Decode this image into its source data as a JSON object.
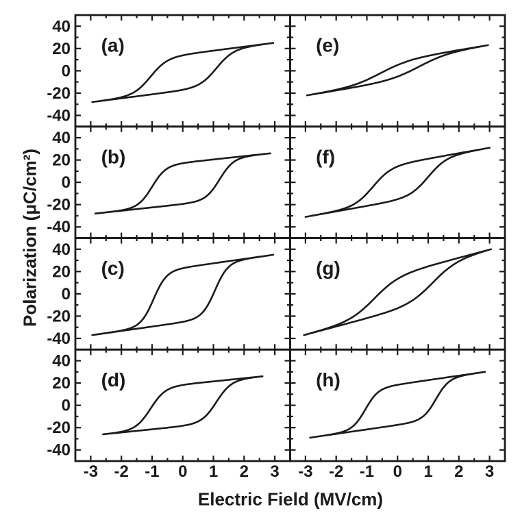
{
  "figure": {
    "background": "#ffffff",
    "ink_color": "#1b1b1b",
    "y_axis_title": "Polarization (μC/cm²)",
    "x_axis_title": "Electric Field (MV/cm)"
  },
  "chart_data": {
    "type": "line",
    "subtype": "ferroelectric P-E hysteresis loops",
    "title": "",
    "xlabel": "Electric Field (MV/cm)",
    "ylabel": "Polarization (μC/cm²)",
    "layout": {
      "rows": 4,
      "cols": 2,
      "panel_order": [
        "a",
        "b",
        "c",
        "d",
        "e",
        "f",
        "g",
        "h"
      ],
      "grid": false,
      "legend": "none"
    },
    "x_range": [
      -3.5,
      3.5
    ],
    "y_range": [
      -50,
      50
    ],
    "x_major_ticks": [
      -3,
      -2,
      -1,
      0,
      1,
      2,
      3
    ],
    "x_minor_step": 0.5,
    "y_major_ticks": [
      40,
      20,
      0,
      -20,
      -40
    ],
    "y_minor_step": 10,
    "panels": [
      {
        "id": "a",
        "label": "(a)",
        "col": 0,
        "row": 0,
        "loop": {
          "e_end": 2.95,
          "p_max": 25,
          "p_min": -28,
          "ec_neg": -1.05,
          "ec_pos": 1.1,
          "width": 0.55,
          "shear": 0.22,
          "pr_pos": 15,
          "pr_neg": -12
        }
      },
      {
        "id": "b",
        "label": "(b)",
        "col": 0,
        "row": 1,
        "loop": {
          "e_end": 2.85,
          "p_max": 26,
          "p_min": -28,
          "ec_neg": -1.0,
          "ec_pos": 1.2,
          "width": 0.45,
          "shear": 0.16,
          "pr_pos": 17,
          "pr_neg": -16
        }
      },
      {
        "id": "c",
        "label": "(c)",
        "col": 0,
        "row": 2,
        "loop": {
          "e_end": 2.95,
          "p_max": 35,
          "p_min": -37,
          "ec_neg": -0.95,
          "ec_pos": 1.05,
          "width": 0.42,
          "shear": 0.16,
          "pr_pos": 23,
          "pr_neg": -25
        }
      },
      {
        "id": "d",
        "label": "(d)",
        "col": 0,
        "row": 3,
        "loop": {
          "e_end": 2.6,
          "p_max": 26,
          "p_min": -26,
          "ec_neg": -1.05,
          "ec_pos": 1.1,
          "width": 0.48,
          "shear": 0.15,
          "pr_pos": 15,
          "pr_neg": -15
        }
      },
      {
        "id": "e",
        "label": "(e)",
        "col": 1,
        "row": 0,
        "loop": {
          "e_end": 2.95,
          "p_max": 23,
          "p_min": -22,
          "ec_neg": -0.55,
          "ec_pos": 0.7,
          "width": 0.95,
          "shear": 0.5,
          "pr_pos": 7,
          "pr_neg": -5
        }
      },
      {
        "id": "f",
        "label": "(f)",
        "col": 1,
        "row": 1,
        "loop": {
          "e_end": 3.0,
          "p_max": 31,
          "p_min": -31,
          "ec_neg": -0.8,
          "ec_pos": 1.0,
          "width": 0.6,
          "shear": 0.3,
          "pr_pos": 13,
          "pr_neg": -10
        }
      },
      {
        "id": "g",
        "label": "(g)",
        "col": 1,
        "row": 2,
        "loop": {
          "e_end": 3.05,
          "p_max": 40,
          "p_min": -37,
          "ec_neg": -0.75,
          "ec_pos": 1.15,
          "width": 0.8,
          "shear": 0.45,
          "pr_pos": 15,
          "pr_neg": -13
        }
      },
      {
        "id": "h",
        "label": "(h)",
        "col": 1,
        "row": 3,
        "loop": {
          "e_end": 2.85,
          "p_max": 30,
          "p_min": -29,
          "ec_neg": -1.05,
          "ec_pos": 1.25,
          "width": 0.42,
          "shear": 0.22,
          "pr_pos": 17,
          "pr_neg": -15
        }
      }
    ]
  }
}
